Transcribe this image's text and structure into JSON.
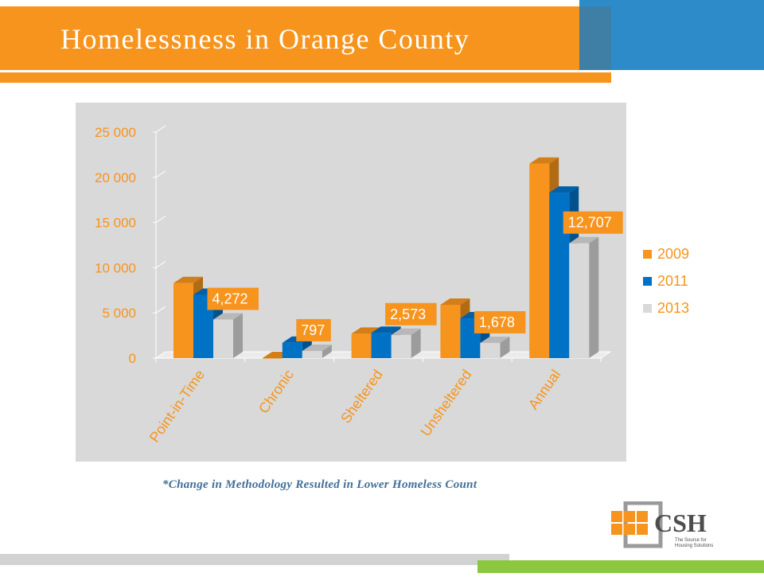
{
  "slide": {
    "title": "Homelessness in Orange County",
    "footnote": "*Change in Methodology Resulted in Lower Homeless Count"
  },
  "colors": {
    "banner_orange": "#F7941D",
    "banner_blue": "#2E8BC9",
    "footer_green": "#8DC63F",
    "chart_bg": "#D9D9D9",
    "axis_text": "#F7941D",
    "label_box": "#F7941D"
  },
  "chart_data": {
    "type": "bar",
    "categories": [
      "Point-in-Time",
      "Chronic",
      "Sheltered",
      "Unsheltered",
      "Annual"
    ],
    "series": [
      {
        "name": "2009",
        "color": "#F7941D",
        "values": [
          8300,
          0,
          2700,
          5900,
          21500
        ]
      },
      {
        "name": "2011",
        "color": "#0072C6",
        "values": [
          7000,
          1700,
          2800,
          4400,
          18300
        ]
      },
      {
        "name": "2013",
        "color": "#D9D9D9",
        "values": [
          4272,
          797,
          2573,
          1678,
          12707
        ]
      }
    ],
    "ylim": [
      0,
      25000
    ],
    "yticks": [
      0,
      5000,
      10000,
      15000,
      20000,
      25000
    ],
    "ytick_labels": [
      "0",
      "5 000",
      "10 000",
      "15 000",
      "20 000",
      "25 000"
    ],
    "data_labels": [
      "4,272",
      "797",
      "2,573",
      "1,678",
      "12,707"
    ],
    "legend_position": "right",
    "grid": false
  },
  "logo": {
    "text": "CSH",
    "tagline_1": "The Source for",
    "tagline_2": "Housing Solutions"
  }
}
